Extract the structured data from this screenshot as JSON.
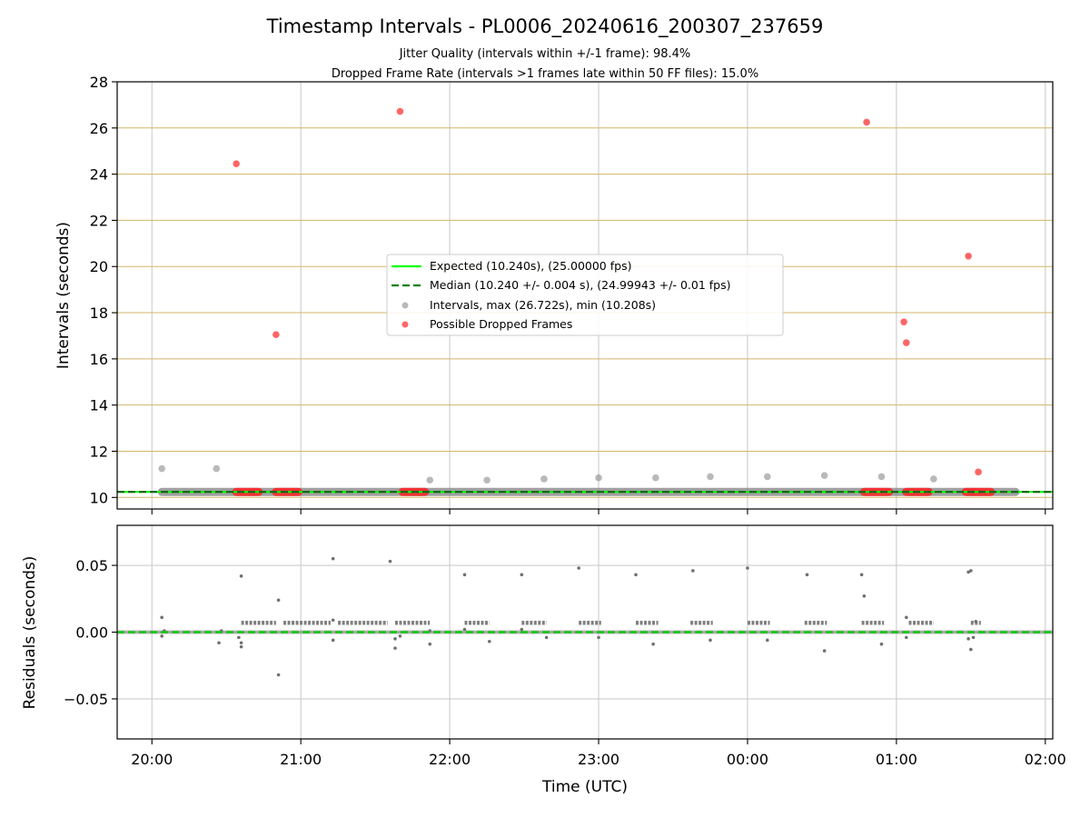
{
  "chart_data": [
    {
      "panel": "intervals",
      "type": "scatter",
      "title": "Timestamp Intervals - PL0006_20240616_200307_237659",
      "subtitle_lines": [
        "Jitter Quality (intervals within +/-1 frame): 98.4%",
        "Dropped Frame Rate (intervals >1 frames late within 50 FF files): 15.0%"
      ],
      "xlabel": "",
      "ylabel": "Intervals (seconds)",
      "xlim": [
        "19:46",
        "02:03"
      ],
      "ylim": [
        9.5,
        28
      ],
      "yticks": [
        10,
        12,
        14,
        16,
        18,
        20,
        22,
        24,
        26,
        28
      ],
      "ytick_labels": [
        "10",
        "12",
        "14",
        "16",
        "18",
        "20",
        "22",
        "24",
        "26",
        "28"
      ],
      "xticks": [
        "20:00",
        "21:00",
        "22:00",
        "23:00",
        "00:00",
        "01:00",
        "02:00"
      ],
      "grid": true,
      "horizontal_grid_color": "#d4b56a",
      "vertical_grid_color": "#cccccc",
      "legend_position": "center",
      "legend": [
        {
          "label": "Expected (10.240s), (25.00000 fps)",
          "kind": "solid-line",
          "color": "#00ff00"
        },
        {
          "label": "Median (10.240 +/- 0.004 s), (24.99943 +/- 0.01 fps)",
          "kind": "dashed-line",
          "color": "#008000"
        },
        {
          "label": "Intervals, max (26.722s), min (10.208s)",
          "kind": "marker",
          "color": "#808080"
        },
        {
          "label": "Possible Dropped Frames",
          "kind": "marker",
          "color": "#ff0000"
        }
      ],
      "expected_value": 10.24,
      "median_value": 10.24,
      "baseline_span": [
        "20:04",
        "01:48"
      ],
      "gray_points": [
        {
          "x": "20:04",
          "y": 11.25
        },
        {
          "x": "20:26",
          "y": 11.25
        },
        {
          "x": "21:52",
          "y": 10.75
        },
        {
          "x": "22:15",
          "y": 10.75
        },
        {
          "x": "22:38",
          "y": 10.8
        },
        {
          "x": "23:00",
          "y": 10.85
        },
        {
          "x": "23:23",
          "y": 10.85
        },
        {
          "x": "23:45",
          "y": 10.9
        },
        {
          "x": "00:08",
          "y": 10.9
        },
        {
          "x": "00:31",
          "y": 10.95
        },
        {
          "x": "00:54",
          "y": 10.9
        },
        {
          "x": "01:15",
          "y": 10.8
        }
      ],
      "red_points": [
        {
          "x": "20:34",
          "y": 24.45
        },
        {
          "x": "20:50",
          "y": 17.05
        },
        {
          "x": "21:40",
          "y": 26.72
        },
        {
          "x": "00:48",
          "y": 26.25
        },
        {
          "x": "01:03",
          "y": 17.6
        },
        {
          "x": "01:04",
          "y": 16.7
        },
        {
          "x": "01:29",
          "y": 20.45
        },
        {
          "x": "01:33",
          "y": 11.1
        }
      ],
      "red_clusters": [
        [
          "20:34",
          "20:43"
        ],
        [
          "20:50",
          "20:59"
        ],
        [
          "21:41",
          "21:50"
        ],
        [
          "00:47",
          "00:57"
        ],
        [
          "01:04",
          "01:13"
        ],
        [
          "01:28",
          "01:38"
        ]
      ]
    },
    {
      "panel": "residuals",
      "type": "scatter",
      "xlabel": "Time (UTC)",
      "ylabel": "Residuals (seconds)",
      "xlim": [
        "19:46",
        "02:03"
      ],
      "ylim": [
        -0.08,
        0.08
      ],
      "yticks": [
        -0.05,
        0,
        0.05
      ],
      "ytick_labels": [
        "−0.05",
        "0.00",
        "0.05"
      ],
      "xticks": [
        "20:00",
        "21:00",
        "22:00",
        "23:00",
        "00:00",
        "01:00",
        "02:00"
      ],
      "xtick_labels": [
        "20:00",
        "21:00",
        "22:00",
        "23:00",
        "00:00",
        "01:00",
        "02:00"
      ],
      "grid": true,
      "zero_line_color": "#00cc00",
      "band_segments": [
        [
          "20:36",
          "20:50"
        ],
        [
          "20:53",
          "21:12"
        ],
        [
          "21:15",
          "21:35"
        ],
        [
          "21:38",
          "21:52"
        ],
        [
          "22:06",
          "22:16"
        ],
        [
          "22:29",
          "22:39"
        ],
        [
          "22:52",
          "23:01"
        ],
        [
          "23:15",
          "23:24"
        ],
        [
          "23:37",
          "23:46"
        ],
        [
          "00:00",
          "00:09"
        ],
        [
          "00:23",
          "00:32"
        ],
        [
          "00:46",
          "00:55"
        ],
        [
          "01:05",
          "01:15"
        ],
        [
          "01:30",
          "01:34"
        ]
      ],
      "band_value": 0.007,
      "points": [
        {
          "x": "20:04",
          "y": 0.011
        },
        {
          "x": "20:04",
          "y": -0.003
        },
        {
          "x": "20:05",
          "y": 0.001
        },
        {
          "x": "20:27",
          "y": -0.008
        },
        {
          "x": "20:28",
          "y": 0.001
        },
        {
          "x": "20:35",
          "y": -0.004
        },
        {
          "x": "20:36",
          "y": -0.011
        },
        {
          "x": "20:36",
          "y": -0.008
        },
        {
          "x": "20:36",
          "y": 0.042
        },
        {
          "x": "20:51",
          "y": 0.024
        },
        {
          "x": "20:51",
          "y": -0.032
        },
        {
          "x": "21:13",
          "y": 0.055
        },
        {
          "x": "21:13",
          "y": -0.006
        },
        {
          "x": "21:13",
          "y": 0.009
        },
        {
          "x": "21:36",
          "y": 0.053
        },
        {
          "x": "21:38",
          "y": -0.005
        },
        {
          "x": "21:38",
          "y": -0.012
        },
        {
          "x": "21:40",
          "y": -0.003
        },
        {
          "x": "21:52",
          "y": -0.009
        },
        {
          "x": "21:52",
          "y": 0.001
        },
        {
          "x": "22:06",
          "y": 0.043
        },
        {
          "x": "22:06",
          "y": 0.002
        },
        {
          "x": "22:16",
          "y": -0.007
        },
        {
          "x": "22:29",
          "y": 0.043
        },
        {
          "x": "22:29",
          "y": 0.002
        },
        {
          "x": "22:39",
          "y": -0.004
        },
        {
          "x": "22:52",
          "y": 0.048
        },
        {
          "x": "23:00",
          "y": -0.004
        },
        {
          "x": "23:15",
          "y": 0.043
        },
        {
          "x": "23:22",
          "y": -0.009
        },
        {
          "x": "23:38",
          "y": 0.046
        },
        {
          "x": "23:45",
          "y": -0.006
        },
        {
          "x": "00:00",
          "y": 0.048
        },
        {
          "x": "00:08",
          "y": -0.006
        },
        {
          "x": "00:24",
          "y": 0.043
        },
        {
          "x": "00:31",
          "y": -0.014
        },
        {
          "x": "00:46",
          "y": 0.043
        },
        {
          "x": "00:47",
          "y": 0.027
        },
        {
          "x": "00:54",
          "y": -0.009
        },
        {
          "x": "01:04",
          "y": 0.011
        },
        {
          "x": "01:04",
          "y": -0.004
        },
        {
          "x": "01:29",
          "y": 0.045
        },
        {
          "x": "01:30",
          "y": 0.046
        },
        {
          "x": "01:29",
          "y": -0.005
        },
        {
          "x": "01:30",
          "y": -0.013
        },
        {
          "x": "01:31",
          "y": -0.004
        },
        {
          "x": "01:32",
          "y": 0.008
        }
      ]
    }
  ]
}
